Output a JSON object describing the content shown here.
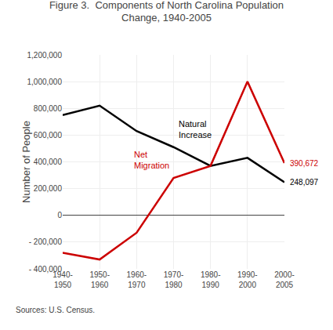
{
  "chart_data": {
    "type": "line",
    "title": "Figure 3.  Components of North Carolina Population\nChange, 1940-2005",
    "ylabel": "Number of People",
    "source": "Sources: U.S. Census.",
    "categories": [
      "1940-\n1950",
      "1950-\n1960",
      "1960-\n1970",
      "1970-\n1980",
      "1980-\n1990",
      "1990-\n2000",
      "2000-\n2005"
    ],
    "series": [
      {
        "name": "Natural\nIncrease",
        "color": "#000000",
        "values": [
          750000,
          820000,
          630000,
          510000,
          370000,
          430000,
          248097
        ],
        "value_labels": [
          null,
          null,
          null,
          null,
          null,
          null,
          "248,097"
        ]
      },
      {
        "name": "Net\nMigration",
        "color": "#cc0000",
        "values": [
          -280000,
          -330000,
          -130000,
          280000,
          370000,
          1000000,
          390672
        ],
        "value_labels": [
          null,
          null,
          null,
          null,
          null,
          null,
          "390,672"
        ]
      }
    ],
    "ylim": [
      -400000,
      1200000
    ],
    "yticks": [
      {
        "value": -400000,
        "label": "- 400,000"
      },
      {
        "value": -200000,
        "label": "- 200,000"
      },
      0,
      {
        "value": 200000,
        "label": "200,000"
      },
      {
        "value": 400000,
        "label": "400,000"
      },
      {
        "value": 600000,
        "label": "600,000"
      },
      {
        "value": 800000,
        "label": "800,000"
      },
      {
        "value": 1000000,
        "label": "1,000,000"
      },
      {
        "value": 1200000,
        "label": "1,200,000"
      }
    ],
    "grid": true
  }
}
